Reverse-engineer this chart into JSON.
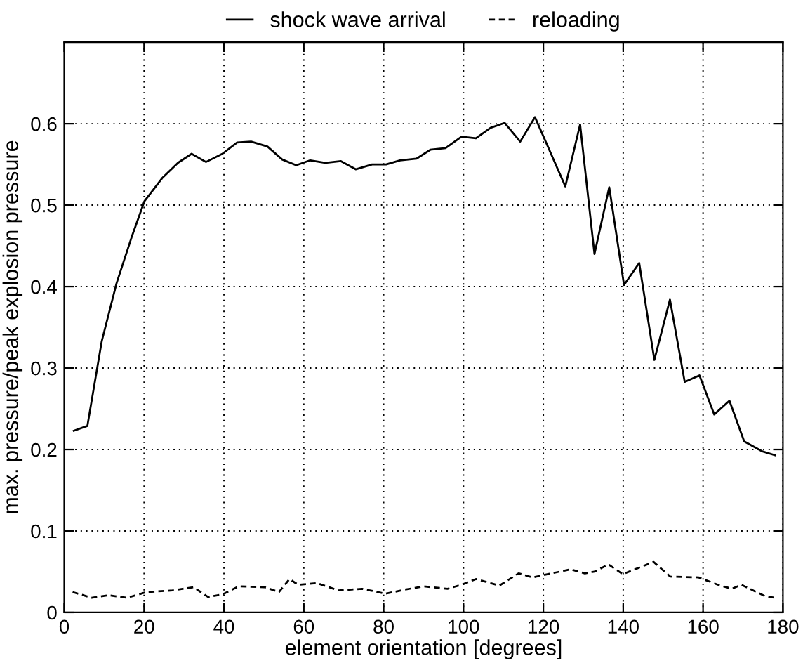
{
  "chart_data": {
    "type": "line",
    "xlabel": "element orientation [degrees]",
    "ylabel": "max. pressure/peak explosion pressure",
    "xlim": [
      0,
      180
    ],
    "xticks": [
      0,
      20,
      40,
      60,
      80,
      100,
      120,
      140,
      160,
      180
    ],
    "ylim": [
      0,
      0.7
    ],
    "yticks": [
      0,
      0.1,
      0.2,
      0.3,
      0.4,
      0.5,
      0.6
    ],
    "grid": true,
    "legend": "top",
    "marker": "none",
    "series": [
      {
        "name": "shock wave arrival",
        "color": "#000000",
        "line_style": "solid",
        "x": [
          2.4,
          5.8,
          9.4,
          13.1,
          16.9,
          20.1,
          24.5,
          28.5,
          31.9,
          35.5,
          39.6,
          43.3,
          46.8,
          50.9,
          54.6,
          58.1,
          61.6,
          65.4,
          69.3,
          73.0,
          77.1,
          80.6,
          84.1,
          88.2,
          91.7,
          95.5,
          99.5,
          103.1,
          106.8,
          110.3,
          114.2,
          117.9,
          125.5,
          129.2,
          132.8,
          136.5,
          140.2,
          144.0,
          147.8,
          151.7,
          155.4,
          159.1,
          162.8,
          166.6,
          170.3,
          174.7,
          178.0
        ],
        "values": [
          0.223,
          0.229,
          0.333,
          0.404,
          0.461,
          0.505,
          0.533,
          0.552,
          0.563,
          0.553,
          0.563,
          0.577,
          0.578,
          0.572,
          0.556,
          0.549,
          0.555,
          0.552,
          0.554,
          0.544,
          0.55,
          0.55,
          0.555,
          0.557,
          0.568,
          0.57,
          0.584,
          0.582,
          0.595,
          0.601,
          0.578,
          0.608,
          0.523,
          0.599,
          0.44,
          0.522,
          0.402,
          0.429,
          0.31,
          0.384,
          0.283,
          0.291,
          0.243,
          0.26,
          0.21,
          0.198,
          0.193
        ]
      },
      {
        "name": "reloading",
        "color": "#000000",
        "line_style": "dashed",
        "x": [
          2.1,
          6.9,
          11.1,
          15.8,
          20.6,
          27.1,
          32.4,
          36.0,
          39.6,
          43.7,
          50.2,
          53.8,
          56.4,
          58.6,
          63.3,
          68.7,
          74.6,
          80.5,
          85.3,
          90.0,
          96.0,
          99.5,
          103.1,
          109.0,
          113.8,
          117.3,
          122.1,
          126.8,
          130.4,
          132.8,
          136.3,
          139.9,
          147.6,
          151.8,
          158.9,
          163.7,
          167.2,
          169.6,
          175.5,
          177.9
        ],
        "values": [
          0.025,
          0.018,
          0.021,
          0.018,
          0.025,
          0.027,
          0.031,
          0.019,
          0.022,
          0.032,
          0.031,
          0.025,
          0.041,
          0.034,
          0.036,
          0.027,
          0.029,
          0.023,
          0.028,
          0.032,
          0.029,
          0.034,
          0.041,
          0.033,
          0.048,
          0.043,
          0.048,
          0.053,
          0.048,
          0.05,
          0.059,
          0.047,
          0.062,
          0.044,
          0.043,
          0.034,
          0.029,
          0.034,
          0.02,
          0.018
        ]
      }
    ]
  }
}
